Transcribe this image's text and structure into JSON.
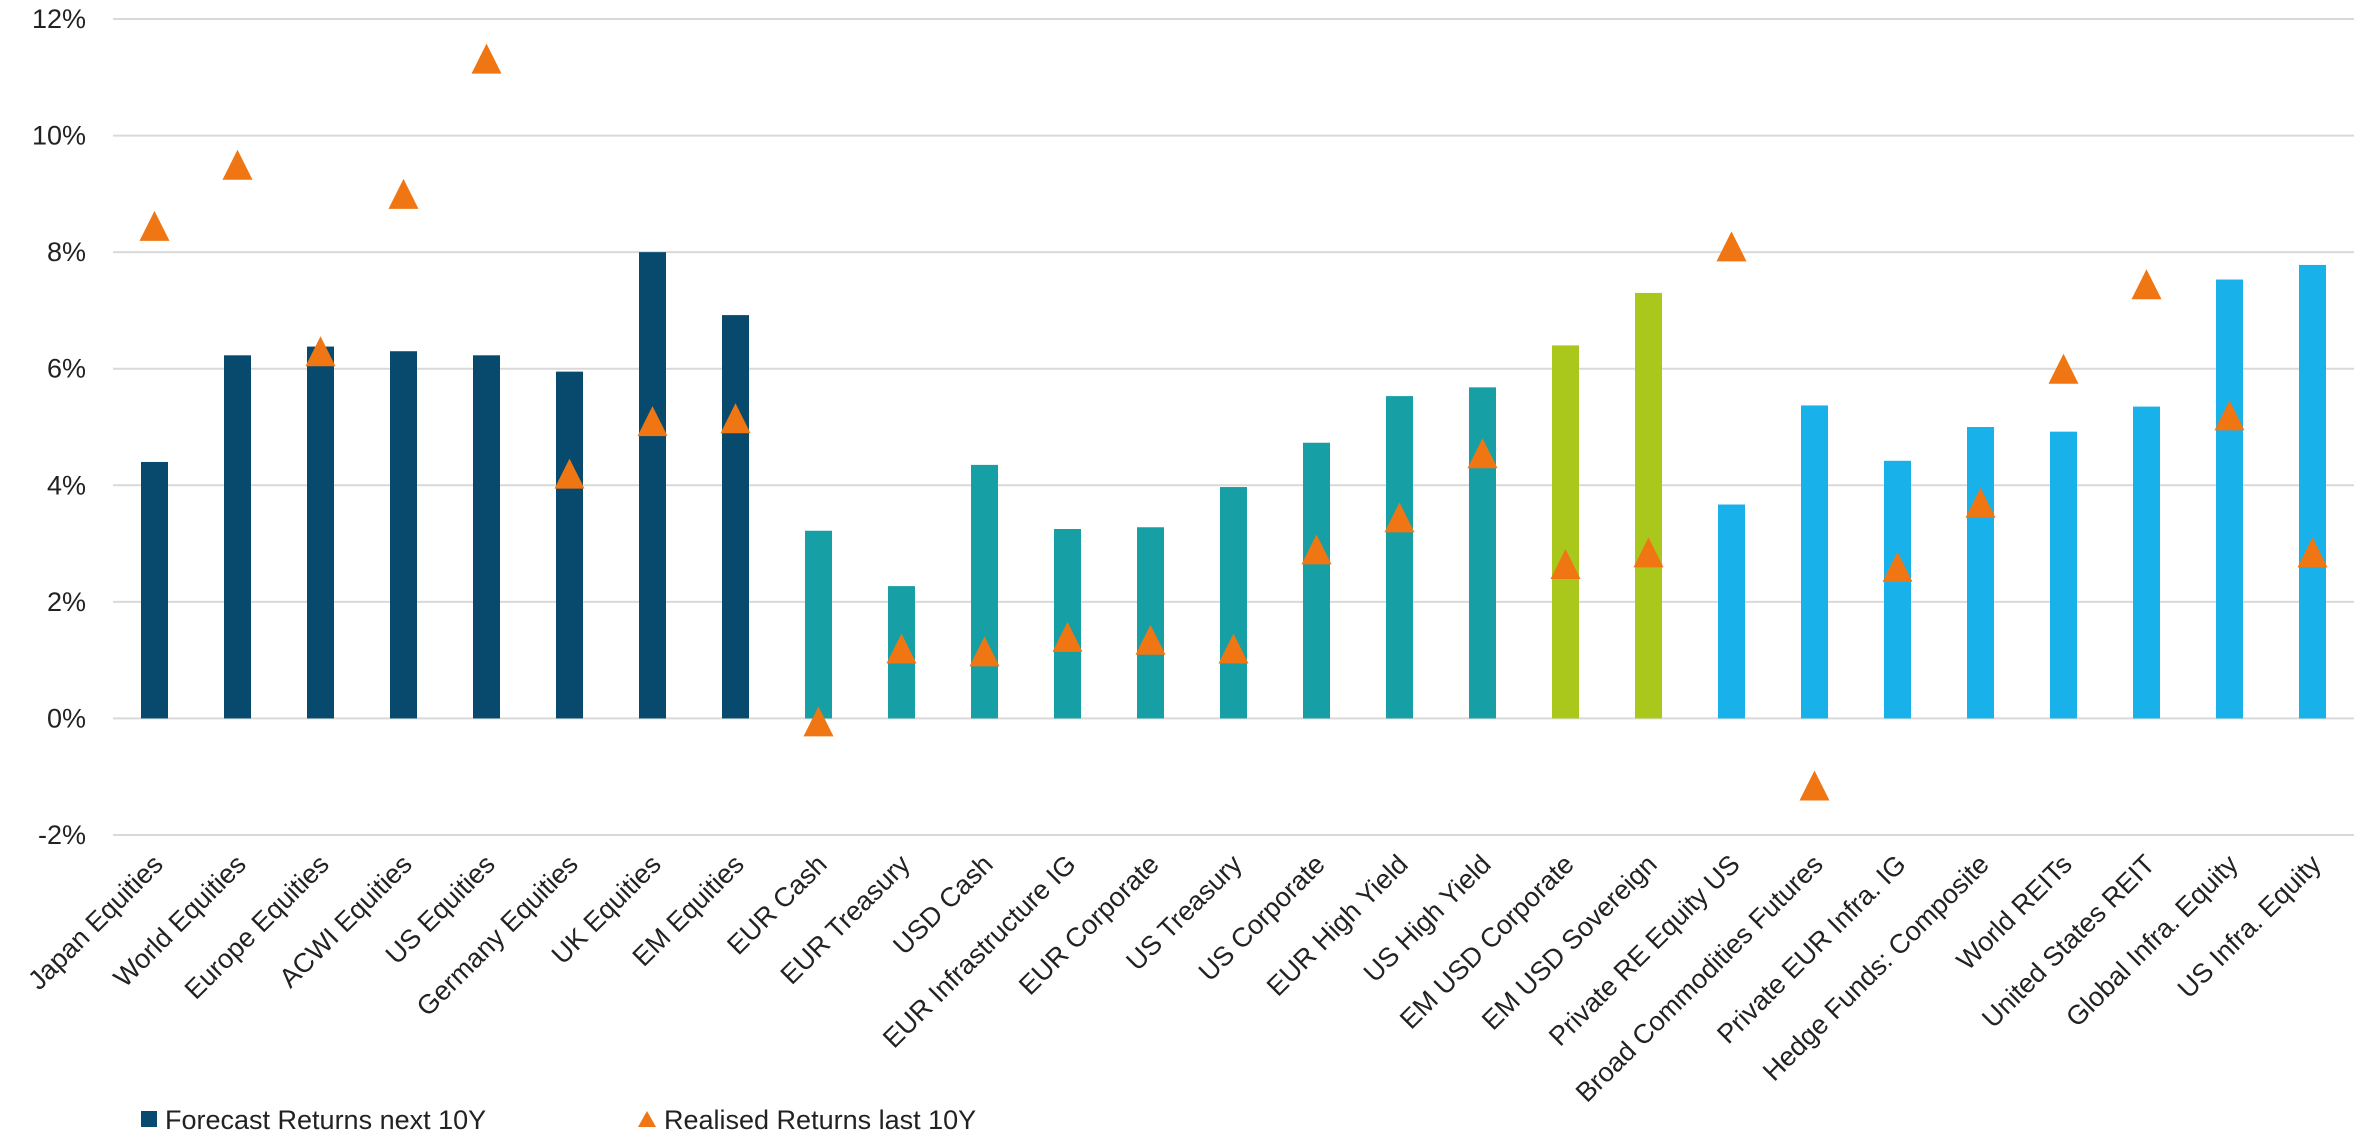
{
  "chart_data": {
    "type": "bar",
    "title": "",
    "xlabel": "",
    "ylabel": "",
    "ylim": [
      -2,
      12
    ],
    "yticks": [
      -2,
      0,
      2,
      4,
      6,
      8,
      10,
      12
    ],
    "ytick_labels": [
      "-2%",
      "0%",
      "2%",
      "4%",
      "6%",
      "8%",
      "10%",
      "12%"
    ],
    "grid": true,
    "legend_position": "bottom-left",
    "categories": [
      "Japan Equities",
      "World Equities",
      "Europe Equities",
      "ACWI Equities",
      "US Equities",
      "Germany Equities",
      "UK Equities",
      "EM Equities",
      "EUR Cash",
      "EUR Treasury",
      "USD Cash",
      "EUR Infrastructure IG",
      "EUR Corporate",
      "US Treasury",
      "US Corporate",
      "EUR High Yield",
      "US High Yield",
      "EM USD Corporate",
      "EM USD Sovereign",
      "Private RE Equity US",
      "Broad Commodities Futures",
      "Private EUR Infra. IG",
      "Hedge Funds: Composite",
      "World REITs",
      "United States REIT",
      "Global Infra. Equity",
      "US Infra. Equity"
    ],
    "series": [
      {
        "name": "Forecast Returns next 10Y",
        "type": "bar",
        "legend_color": "#084a6d",
        "values": [
          4.4,
          6.23,
          6.38,
          6.3,
          6.23,
          5.95,
          8.0,
          6.92,
          3.22,
          2.27,
          4.35,
          3.25,
          3.28,
          3.97,
          4.73,
          5.53,
          5.68,
          6.4,
          7.3,
          3.67,
          5.37,
          4.42,
          5.0,
          4.92,
          5.35,
          7.53,
          7.78
        ],
        "colors": [
          "#084a6d",
          "#084a6d",
          "#084a6d",
          "#084a6d",
          "#084a6d",
          "#084a6d",
          "#084a6d",
          "#084a6d",
          "#169fa4",
          "#169fa4",
          "#169fa4",
          "#169fa4",
          "#169fa4",
          "#169fa4",
          "#169fa4",
          "#169fa4",
          "#169fa4",
          "#aac71c",
          "#aac71c",
          "#19b1ea",
          "#19b1ea",
          "#19b1ea",
          "#19b1ea",
          "#19b1ea",
          "#19b1ea",
          "#19b1ea",
          "#19b1ea"
        ]
      },
      {
        "name": "Realised Returns last 10Y",
        "type": "scatter",
        "marker": "triangle",
        "color": "#ef7612",
        "values": [
          8.45,
          9.5,
          6.3,
          9.0,
          11.32,
          4.2,
          5.1,
          5.15,
          -0.05,
          1.2,
          1.15,
          1.4,
          1.35,
          1.2,
          2.9,
          3.45,
          4.55,
          2.65,
          2.85,
          8.1,
          -1.15,
          2.6,
          3.7,
          6.0,
          7.45,
          5.2,
          2.85
        ]
      }
    ]
  }
}
